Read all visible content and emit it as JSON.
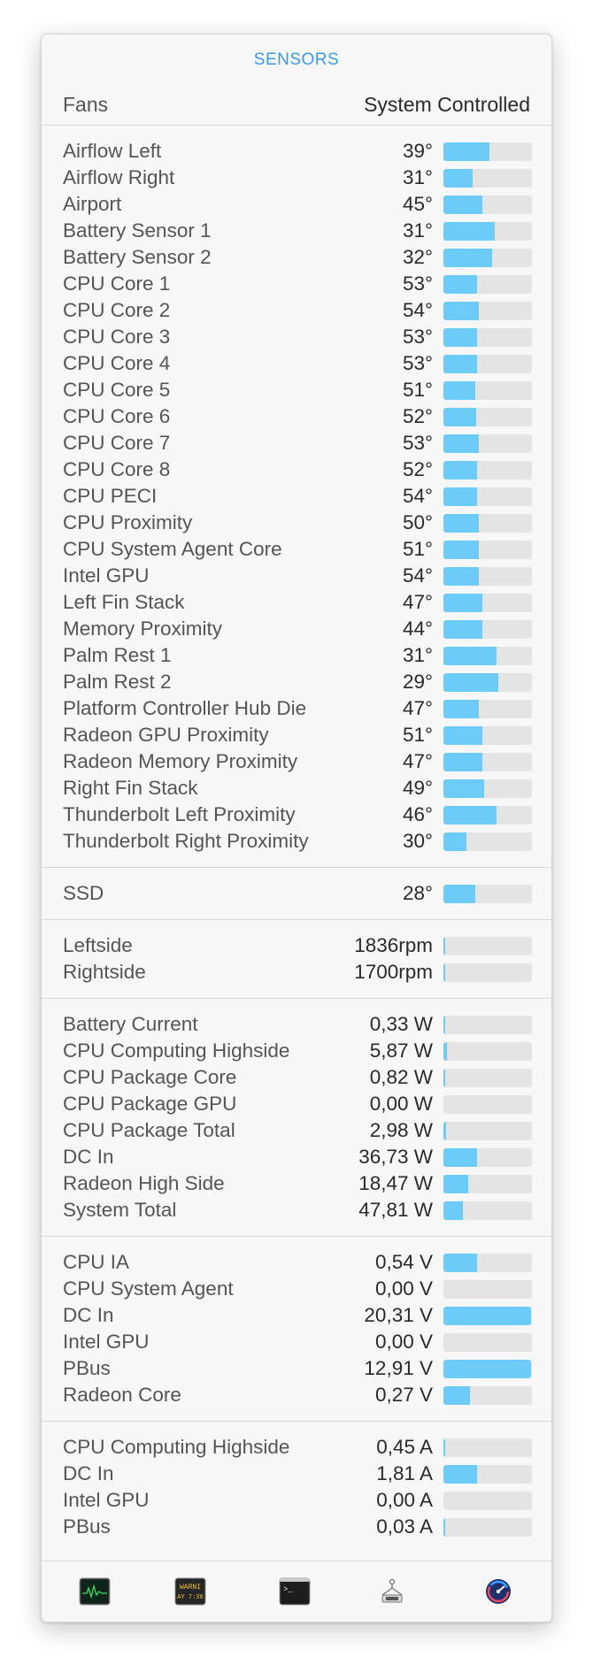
{
  "header": {
    "title": "SENSORS",
    "fans_label": "Fans",
    "fans_value": "System Controlled"
  },
  "colors": {
    "accent": "#3b9be3",
    "bar_fill": "#6ccbf7",
    "bar_track": "#e4e4e4"
  },
  "sections": [
    {
      "id": "temperatures",
      "rows": [
        {
          "name": "Airflow Left",
          "value": "39°",
          "level": 0.52
        },
        {
          "name": "Airflow Right",
          "value": "31°",
          "level": 0.33
        },
        {
          "name": "Airport",
          "value": "45°",
          "level": 0.44
        },
        {
          "name": "Battery Sensor 1",
          "value": "31°",
          "level": 0.58
        },
        {
          "name": "Battery Sensor 2",
          "value": "32°",
          "level": 0.55
        },
        {
          "name": "CPU Core 1",
          "value": "53°",
          "level": 0.38
        },
        {
          "name": "CPU Core 2",
          "value": "54°",
          "level": 0.4
        },
        {
          "name": "CPU Core 3",
          "value": "53°",
          "level": 0.38
        },
        {
          "name": "CPU Core 4",
          "value": "53°",
          "level": 0.38
        },
        {
          "name": "CPU Core 5",
          "value": "51°",
          "level": 0.36
        },
        {
          "name": "CPU Core 6",
          "value": "52°",
          "level": 0.37
        },
        {
          "name": "CPU Core 7",
          "value": "53°",
          "level": 0.4
        },
        {
          "name": "CPU Core 8",
          "value": "52°",
          "level": 0.38
        },
        {
          "name": "CPU PECI",
          "value": "54°",
          "level": 0.38
        },
        {
          "name": "CPU Proximity",
          "value": "50°",
          "level": 0.4
        },
        {
          "name": "CPU System Agent Core",
          "value": "51°",
          "level": 0.4
        },
        {
          "name": "Intel GPU",
          "value": "54°",
          "level": 0.4
        },
        {
          "name": "Left Fin Stack",
          "value": "47°",
          "level": 0.44
        },
        {
          "name": "Memory Proximity",
          "value": "44°",
          "level": 0.44
        },
        {
          "name": "Palm Rest 1",
          "value": "31°",
          "level": 0.6
        },
        {
          "name": "Palm Rest 2",
          "value": "29°",
          "level": 0.62
        },
        {
          "name": "Platform Controller Hub Die",
          "value": "47°",
          "level": 0.4
        },
        {
          "name": "Radeon GPU Proximity",
          "value": "51°",
          "level": 0.44
        },
        {
          "name": "Radeon Memory Proximity",
          "value": "47°",
          "level": 0.44
        },
        {
          "name": "Right Fin Stack",
          "value": "49°",
          "level": 0.46
        },
        {
          "name": "Thunderbolt Left Proximity",
          "value": "46°",
          "level": 0.6
        },
        {
          "name": "Thunderbolt Right Proximity",
          "value": "30°",
          "level": 0.26
        }
      ]
    },
    {
      "id": "ssd",
      "rows": [
        {
          "name": "SSD",
          "value": "28°",
          "level": 0.36
        }
      ]
    },
    {
      "id": "fan-speeds",
      "rows": [
        {
          "name": "Leftside",
          "value": "1836rpm",
          "level": 0.02
        },
        {
          "name": "Rightside",
          "value": "1700rpm",
          "level": 0.02
        }
      ]
    },
    {
      "id": "power",
      "rows": [
        {
          "name": "Battery Current",
          "value": "0,33 W",
          "level": 0.02
        },
        {
          "name": "CPU Computing Highside",
          "value": "5,87 W",
          "level": 0.04
        },
        {
          "name": "CPU Package Core",
          "value": "0,82 W",
          "level": 0.02
        },
        {
          "name": "CPU Package GPU",
          "value": "0,00 W",
          "level": 0.0
        },
        {
          "name": "CPU Package Total",
          "value": "2,98 W",
          "level": 0.03
        },
        {
          "name": "DC In",
          "value": "36,73 W",
          "level": 0.38
        },
        {
          "name": "Radeon High Side",
          "value": "18,47 W",
          "level": 0.28
        },
        {
          "name": "System Total",
          "value": "47,81 W",
          "level": 0.22
        }
      ]
    },
    {
      "id": "voltage",
      "rows": [
        {
          "name": "CPU IA",
          "value": "0,54 V",
          "level": 0.38
        },
        {
          "name": "CPU System Agent",
          "value": "0,00 V",
          "level": 0.0
        },
        {
          "name": "DC In",
          "value": "20,31 V",
          "level": 0.99
        },
        {
          "name": "Intel GPU",
          "value": "0,00 V",
          "level": 0.0
        },
        {
          "name": "PBus",
          "value": "12,91 V",
          "level": 0.99
        },
        {
          "name": "Radeon Core",
          "value": "0,27 V",
          "level": 0.3
        }
      ]
    },
    {
      "id": "current",
      "rows": [
        {
          "name": "CPU Computing Highside",
          "value": "0,45 A",
          "level": 0.02
        },
        {
          "name": "DC In",
          "value": "1,81 A",
          "level": 0.38
        },
        {
          "name": "Intel GPU",
          "value": "0,00 A",
          "level": 0.0
        },
        {
          "name": "PBus",
          "value": "0,03 A",
          "level": 0.02
        }
      ]
    }
  ],
  "toolbar": {
    "items": [
      {
        "icon": "activity-monitor-icon",
        "label": ""
      },
      {
        "icon": "console-icon",
        "label": "WARNI\nAY 7:36"
      },
      {
        "icon": "terminal-icon",
        "label": ">_"
      },
      {
        "icon": "system-information-icon",
        "label": ""
      },
      {
        "icon": "istat-menus-icon",
        "label": ""
      }
    ]
  }
}
